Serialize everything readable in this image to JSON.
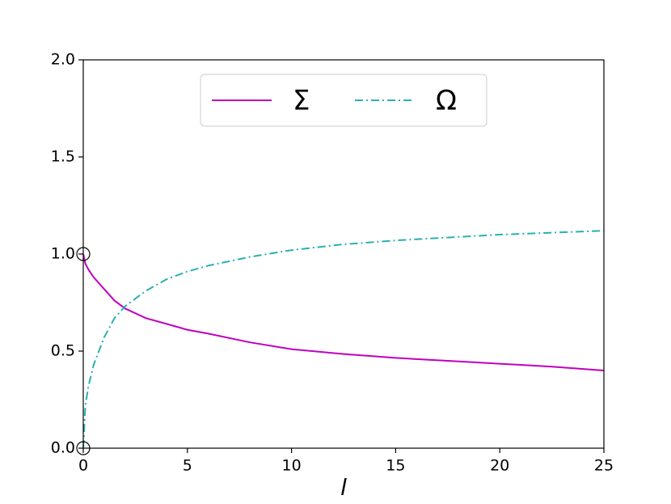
{
  "chart_data": {
    "type": "line",
    "xlabel": "l",
    "x": [
      0,
      0.1,
      0.25,
      0.5,
      1,
      1.5,
      2,
      3,
      4,
      5,
      6,
      8,
      10,
      12.5,
      15,
      17.5,
      20,
      22.5,
      25
    ],
    "series": [
      {
        "name": "Σ",
        "color": "#bf00bf",
        "style": "solid",
        "values": [
          1.0,
          0.95,
          0.92,
          0.88,
          0.82,
          0.76,
          0.72,
          0.67,
          0.64,
          0.61,
          0.59,
          0.545,
          0.51,
          0.485,
          0.465,
          0.45,
          0.435,
          0.42,
          0.4
        ]
      },
      {
        "name": "Ω",
        "color": "#2ab0b0",
        "style": "dashdot",
        "values": [
          0.0,
          0.22,
          0.32,
          0.43,
          0.57,
          0.67,
          0.73,
          0.81,
          0.87,
          0.91,
          0.94,
          0.985,
          1.02,
          1.05,
          1.07,
          1.085,
          1.1,
          1.11,
          1.12
        ]
      }
    ],
    "open_points": {
      "x": [
        0,
        0
      ],
      "y": [
        1,
        0
      ],
      "color": "#000000"
    },
    "xlim": [
      0,
      25
    ],
    "ylim": [
      0,
      2
    ],
    "xticks": [
      0,
      5,
      10,
      15,
      20,
      25
    ],
    "yticks": [
      {
        "value": 0,
        "label": "0.0"
      },
      {
        "value": 0.5,
        "label": "0.5"
      },
      {
        "value": 1,
        "label": "1.0"
      },
      {
        "value": 1.5,
        "label": "1.5"
      },
      {
        "value": 2,
        "label": "2.0"
      }
    ],
    "legend": "upper center",
    "grid": false
  }
}
